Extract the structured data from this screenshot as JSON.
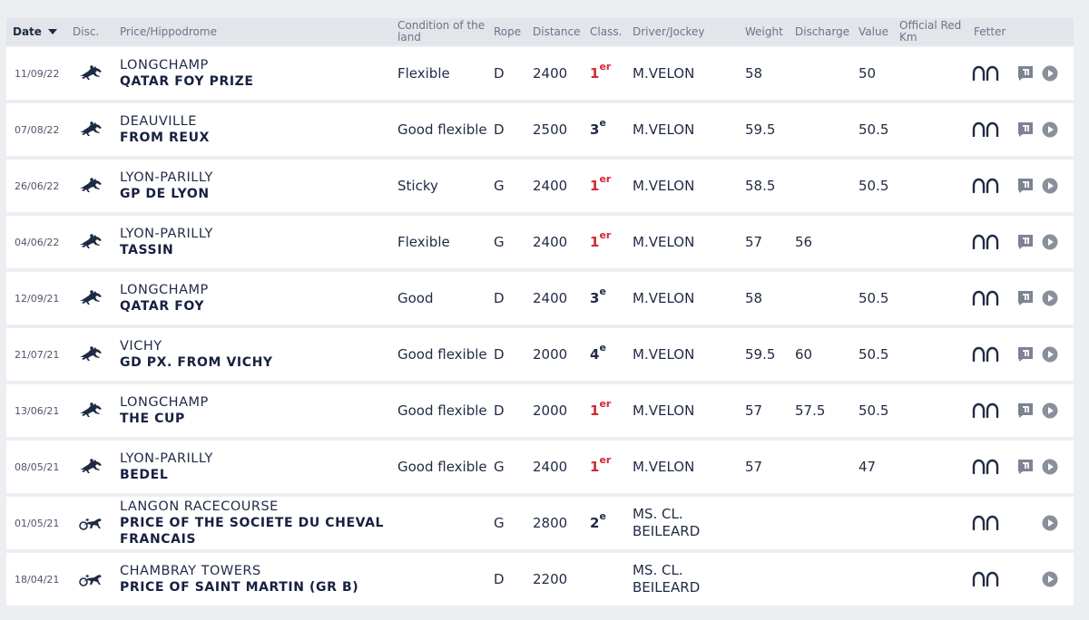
{
  "header": {
    "date": "Date",
    "disc": "Disc.",
    "price_hippodrome": "Price/Hippodrome",
    "condition": "Condition of the land",
    "rope": "Rope",
    "distance": "Distance",
    "class": "Class.",
    "driver": "Driver/Jockey",
    "weight": "Weight",
    "discharge": "Discharge",
    "value": "Value",
    "official_red": "Official Red Km",
    "fetter": "Fetter"
  },
  "colors": {
    "first_place": "#d12a35",
    "text": "#1f2a44",
    "icon": "#8a8f9c"
  },
  "rows": [
    {
      "date": "11/09/22",
      "disc_icon": "galloping-horse-icon",
      "hippodrome": "LONGCHAMP",
      "prize": "QATAR FOY PRIZE",
      "condition": "Flexible",
      "rope": "D",
      "distance": "2400",
      "class": "1",
      "class_suffix": "er",
      "driver": "M.VELON",
      "weight": "58",
      "discharge": "",
      "value": "50",
      "fetter_icon": "horseshoe-icon",
      "report_icon": "report-icon",
      "video_icon": "play-icon"
    },
    {
      "date": "07/08/22",
      "disc_icon": "galloping-horse-icon",
      "hippodrome": "DEAUVILLE",
      "prize": "FROM REUX",
      "condition": "Good flexible",
      "rope": "D",
      "distance": "2500",
      "class": "3",
      "class_suffix": "e",
      "driver": "M.VELON",
      "weight": "59.5",
      "discharge": "",
      "value": "50.5",
      "fetter_icon": "horseshoe-icon",
      "report_icon": "report-icon",
      "video_icon": "play-icon"
    },
    {
      "date": "26/06/22",
      "disc_icon": "galloping-horse-icon",
      "hippodrome": "LYON-PARILLY",
      "prize": "GP DE LYON",
      "condition": "Sticky",
      "rope": "G",
      "distance": "2400",
      "class": "1",
      "class_suffix": "er",
      "driver": "M.VELON",
      "weight": "58.5",
      "discharge": "",
      "value": "50.5",
      "fetter_icon": "horseshoe-icon",
      "report_icon": "report-icon",
      "video_icon": "play-icon"
    },
    {
      "date": "04/06/22",
      "disc_icon": "galloping-horse-icon",
      "hippodrome": "LYON-PARILLY",
      "prize": "TASSIN",
      "condition": "Flexible",
      "rope": "G",
      "distance": "2400",
      "class": "1",
      "class_suffix": "er",
      "driver": "M.VELON",
      "weight": "57",
      "discharge": "56",
      "value": "",
      "fetter_icon": "horseshoe-icon",
      "report_icon": "report-icon",
      "video_icon": "play-icon"
    },
    {
      "date": "12/09/21",
      "disc_icon": "galloping-horse-icon",
      "hippodrome": "LONGCHAMP",
      "prize": "QATAR FOY",
      "condition": "Good",
      "rope": "D",
      "distance": "2400",
      "class": "3",
      "class_suffix": "e",
      "driver": "M.VELON",
      "weight": "58",
      "discharge": "",
      "value": "50.5",
      "fetter_icon": "horseshoe-icon",
      "report_icon": "report-icon",
      "video_icon": "play-icon"
    },
    {
      "date": "21/07/21",
      "disc_icon": "galloping-horse-icon",
      "hippodrome": "VICHY",
      "prize": "GD PX. FROM VICHY",
      "condition": "Good flexible",
      "rope": "D",
      "distance": "2000",
      "class": "4",
      "class_suffix": "e",
      "driver": "M.VELON",
      "weight": "59.5",
      "discharge": "60",
      "value": "50.5",
      "fetter_icon": "horseshoe-icon",
      "report_icon": "report-icon",
      "video_icon": "play-icon"
    },
    {
      "date": "13/06/21",
      "disc_icon": "galloping-horse-icon",
      "hippodrome": "LONGCHAMP",
      "prize": "THE CUP",
      "condition": "Good flexible",
      "rope": "D",
      "distance": "2000",
      "class": "1",
      "class_suffix": "er",
      "driver": "M.VELON",
      "weight": "57",
      "discharge": "57.5",
      "value": "50.5",
      "fetter_icon": "horseshoe-icon",
      "report_icon": "report-icon",
      "video_icon": "play-icon"
    },
    {
      "date": "08/05/21",
      "disc_icon": "galloping-horse-icon",
      "hippodrome": "LYON-PARILLY",
      "prize": "BEDEL",
      "condition": "Good flexible",
      "rope": "G",
      "distance": "2400",
      "class": "1",
      "class_suffix": "er",
      "driver": "M.VELON",
      "weight": "57",
      "discharge": "",
      "value": "47",
      "fetter_icon": "horseshoe-icon",
      "report_icon": "report-icon",
      "video_icon": "play-icon"
    },
    {
      "date": "01/05/21",
      "disc_icon": "trotting-sulky-icon",
      "hippodrome": "LANGON RACECOURSE",
      "prize": "PRICE OF THE SOCIETE DU CHEVAL FRANCAIS",
      "condition": "",
      "rope": "G",
      "distance": "2800",
      "class": "2",
      "class_suffix": "e",
      "driver": "MS. CL. BEILEARD",
      "weight": "",
      "discharge": "",
      "value": "",
      "fetter_icon": "horseshoe-icon",
      "report_icon": "",
      "video_icon": "play-icon"
    },
    {
      "date": "18/04/21",
      "disc_icon": "trotting-sulky-icon",
      "hippodrome": "CHAMBRAY TOWERS",
      "prize": "PRICE OF SAINT MARTIN (GR B)",
      "condition": "",
      "rope": "D",
      "distance": "2200",
      "class": "",
      "class_suffix": "",
      "driver": "MS. CL. BEILEARD",
      "weight": "",
      "discharge": "",
      "value": "",
      "fetter_icon": "horseshoe-icon",
      "report_icon": "",
      "video_icon": "play-icon"
    }
  ]
}
